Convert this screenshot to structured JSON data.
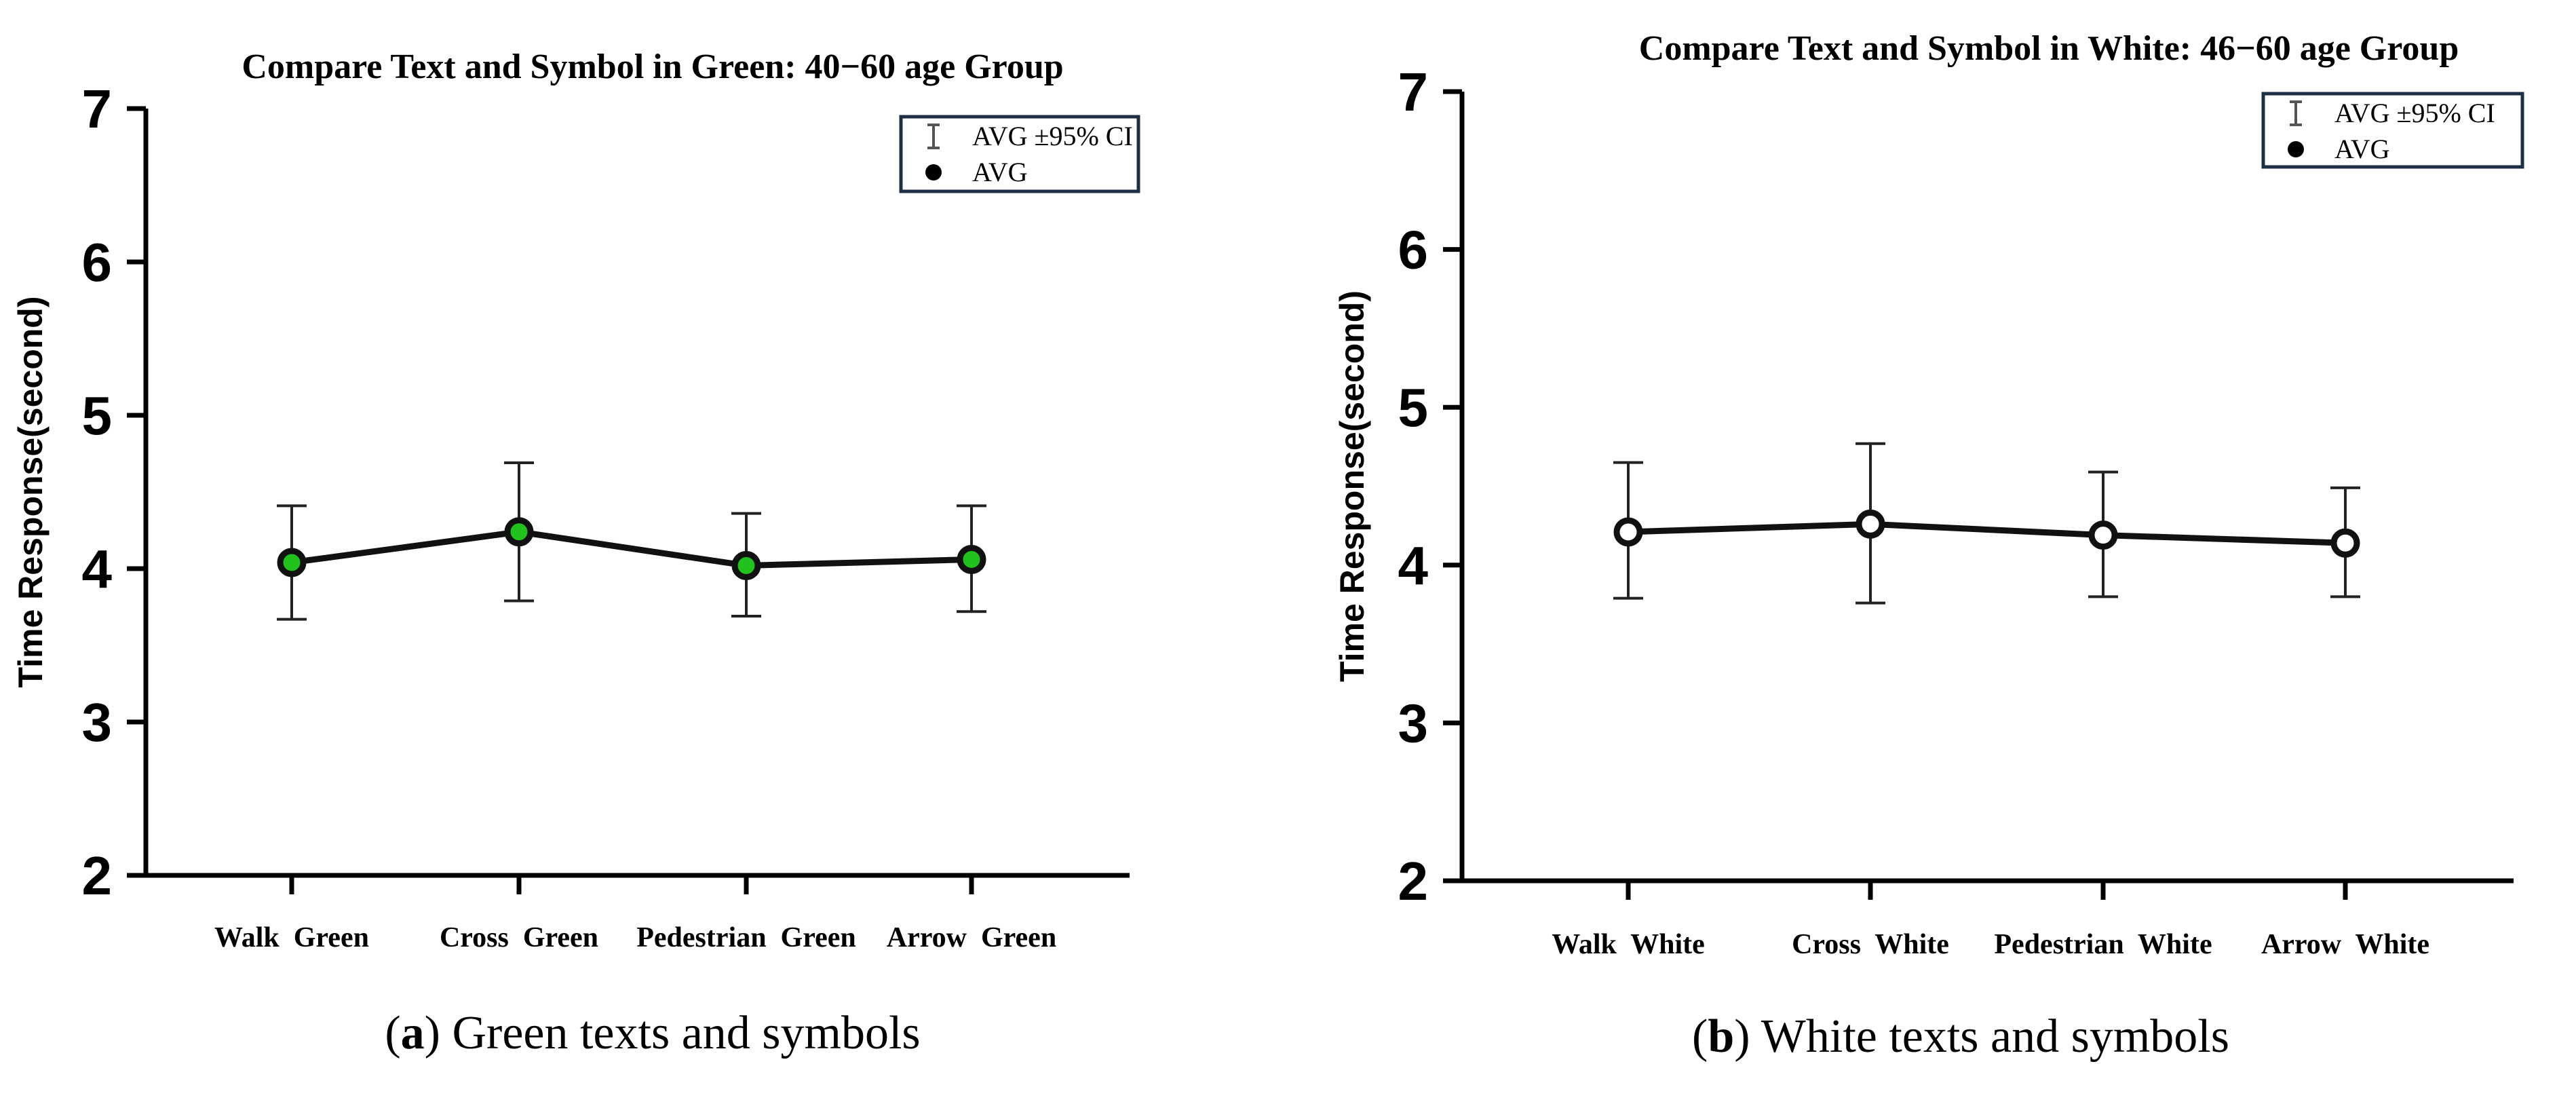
{
  "chart_data": [
    {
      "type": "line",
      "title": "Compare Text and Symbol in Green: 40−60 age Group",
      "ylabel": "Time Response(second)",
      "xlabel": "",
      "ylim": [
        2,
        7
      ],
      "yticks": [
        "2",
        "3",
        "4",
        "5",
        "6",
        "7"
      ],
      "categories": [
        "Walk  Green",
        "Cross  Green",
        "Pedestrian  Green",
        "Arrow  Green"
      ],
      "series": [
        {
          "name": "AVG",
          "values": [
            4.04,
            4.24,
            4.02,
            4.06
          ],
          "ci_low": [
            3.67,
            3.79,
            3.69,
            3.72
          ],
          "ci_high": [
            4.41,
            4.69,
            4.36,
            4.41
          ]
        }
      ],
      "marker_color": "#22c21d",
      "legend": {
        "position": "top-right",
        "entries": [
          "AVG ±95% CI",
          "AVG"
        ]
      },
      "caption_label": "a",
      "caption_text": " Green texts and symbols"
    },
    {
      "type": "line",
      "title": "Compare Text and Symbol in White: 46−60 age Group",
      "ylabel": "Time Response(second)",
      "xlabel": "",
      "ylim": [
        2,
        7
      ],
      "yticks": [
        "2",
        "3",
        "4",
        "5",
        "6",
        "7"
      ],
      "categories": [
        "Walk  White",
        "Cross  White",
        "Pedestrian  White",
        "Arrow  White"
      ],
      "series": [
        {
          "name": "AVG",
          "values": [
            4.21,
            4.26,
            4.19,
            4.14
          ],
          "ci_low": [
            3.79,
            3.76,
            3.8,
            3.8
          ],
          "ci_high": [
            4.65,
            4.77,
            4.59,
            4.49
          ]
        }
      ],
      "marker_color": "#ffffff",
      "legend": {
        "position": "top-right",
        "entries": [
          "AVG ±95% CI",
          "AVG"
        ]
      },
      "caption_label": "b",
      "caption_text": " White texts and symbols"
    }
  ]
}
